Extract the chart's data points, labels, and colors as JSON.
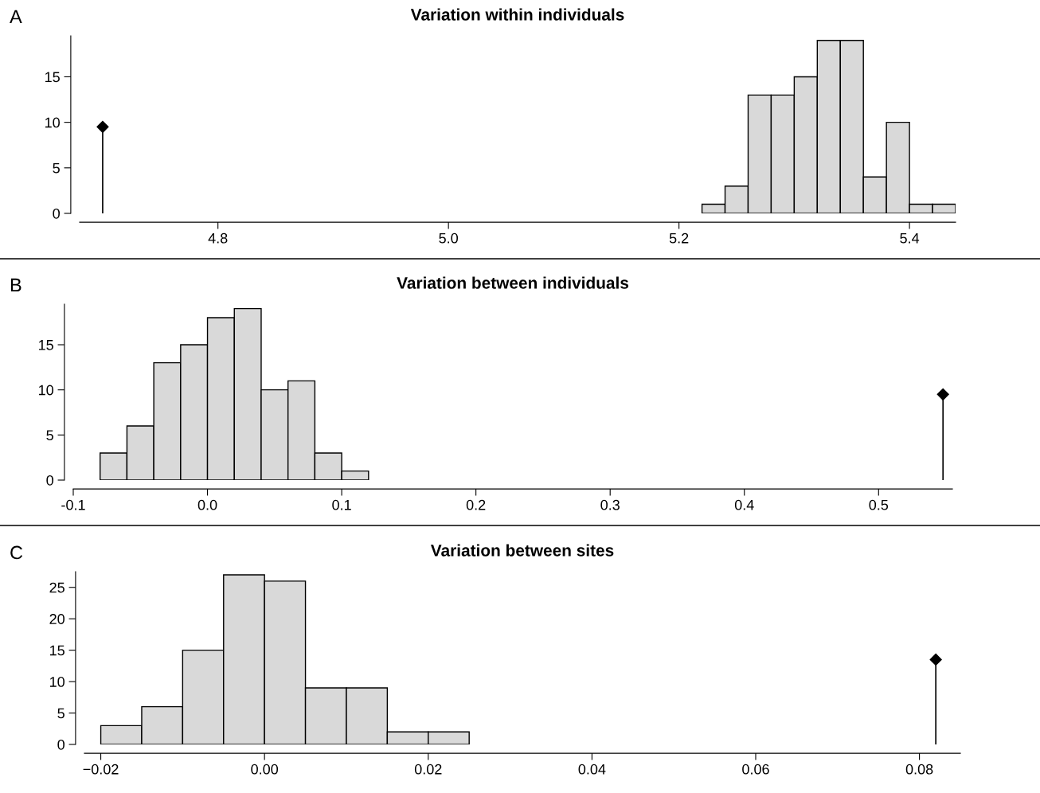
{
  "chart_data": [
    {
      "type": "histogram",
      "title": "Variation within individuals",
      "annotations": [
        "A"
      ],
      "xlim": [
        4.68,
        5.44
      ],
      "xticks": [
        {
          "value": 4.8,
          "label": "4.8"
        },
        {
          "value": 5.0,
          "label": "5.0"
        },
        {
          "value": 5.2,
          "label": "5.2"
        },
        {
          "value": 5.4,
          "label": "5.4"
        }
      ],
      "ylim": [
        0,
        19.5
      ],
      "yticks": [
        0,
        5,
        10,
        15
      ],
      "grid": false,
      "series": [
        {
          "color": "#d9d9d9",
          "bins": [
            5.22,
            5.24,
            5.26,
            5.28,
            5.3,
            5.32,
            5.34,
            5.36,
            5.38,
            5.4,
            5.42,
            5.44
          ],
          "values": [
            1,
            3,
            13,
            13,
            15,
            19,
            19,
            4,
            10,
            1,
            1
          ]
        },
        {
          "type": "lollipop",
          "color": "#000000",
          "marker": "diamond",
          "x": [
            4.7
          ],
          "values": [
            9.5
          ]
        }
      ]
    },
    {
      "type": "histogram",
      "title": "Variation between individuals",
      "annotations": [
        "B"
      ],
      "xlim": [
        -0.1,
        0.555
      ],
      "xticks": [
        -0.1,
        {
          "value": 0.0,
          "label": "0.0"
        },
        0.1,
        0.2,
        0.3,
        0.4,
        0.5
      ],
      "ylim": [
        0,
        19.5
      ],
      "yticks": [
        0,
        5,
        10,
        15
      ],
      "grid": false,
      "series": [
        {
          "color": "#d9d9d9",
          "bins": [
            -0.08,
            -0.06,
            -0.04,
            -0.02,
            0.0,
            0.02,
            0.04,
            0.06,
            0.08,
            0.1,
            0.12
          ],
          "values": [
            3,
            6,
            13,
            15,
            18,
            19,
            10,
            11,
            3,
            1
          ]
        },
        {
          "type": "lollipop",
          "color": "#000000",
          "marker": "diamond",
          "x": [
            0.548
          ],
          "values": [
            9.5
          ]
        }
      ]
    },
    {
      "type": "histogram",
      "title": "Variation between sites",
      "annotations": [
        "C"
      ],
      "xlim": [
        -0.022,
        0.085
      ],
      "xticks": [
        {
          "value": -0.02,
          "label": "−0.02"
        },
        {
          "value": 0.0,
          "label": "0.00"
        },
        {
          "value": 0.02,
          "label": "0.02"
        },
        {
          "value": 0.04,
          "label": "0.04"
        },
        {
          "value": 0.06,
          "label": "0.06"
        },
        {
          "value": 0.08,
          "label": "0.08"
        }
      ],
      "ylim": [
        0,
        27.5
      ],
      "yticks": [
        0,
        5,
        10,
        15,
        20,
        25
      ],
      "grid": false,
      "series": [
        {
          "color": "#d9d9d9",
          "bins": [
            -0.02,
            -0.015,
            -0.01,
            -0.005,
            0.0,
            0.005,
            0.01,
            0.015,
            0.02,
            0.025
          ],
          "values": [
            3,
            6,
            15,
            27,
            26,
            9,
            9,
            2,
            2
          ]
        },
        {
          "type": "lollipop",
          "color": "#000000",
          "marker": "diamond",
          "x": [
            0.082
          ],
          "values": [
            13.5
          ]
        }
      ]
    }
  ]
}
